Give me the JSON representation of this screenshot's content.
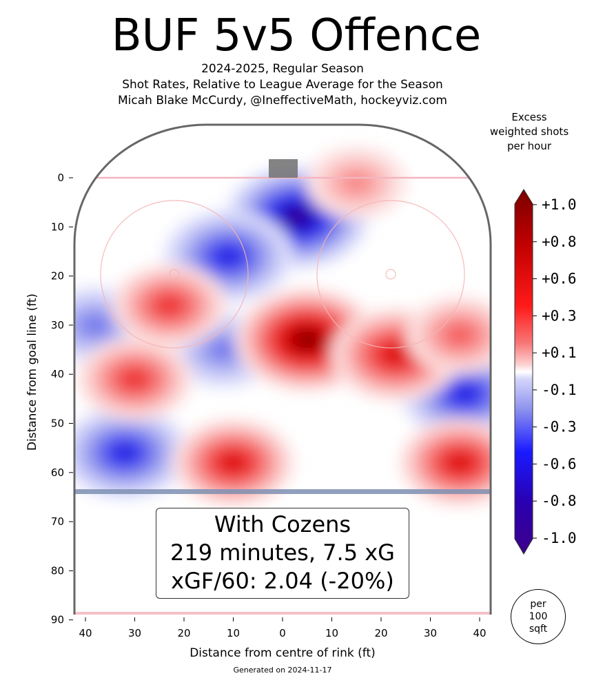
{
  "chart_data": {
    "type": "heatmap",
    "title": "BUF 5v5 Offence",
    "subtitle_lines": [
      "2024-2025, Regular Season",
      "Shot Rates, Relative to League Average for the Season",
      "Micah Blake McCurdy, @IneffectiveMath, hockeyviz.com"
    ],
    "xlabel": "Distance from centre of rink (ft)",
    "ylabel": "Distance from goal line (ft)",
    "x_ticks": [
      40,
      30,
      20,
      10,
      0,
      10,
      20,
      30,
      40
    ],
    "y_ticks": [
      0,
      10,
      20,
      30,
      40,
      50,
      60,
      70,
      80,
      90
    ],
    "xlim": [
      -42,
      42
    ],
    "ylim": [
      -11,
      90
    ],
    "colorbar": {
      "title": "Excess weighted shots per hour",
      "tick_labels": [
        "+1.0",
        "+0.8",
        "+0.6",
        "+0.3",
        "+0.1",
        "-0.1",
        "-0.3",
        "-0.6",
        "-0.8",
        "-1.0"
      ],
      "range": [
        -1.0,
        1.0
      ]
    },
    "hotspots": [
      {
        "x": 5,
        "y": 33,
        "value": 1.0
      },
      {
        "x": 23,
        "y": 36,
        "value": 0.8
      },
      {
        "x": 36,
        "y": 32,
        "value": 0.5
      },
      {
        "x": -23,
        "y": 26,
        "value": 0.6
      },
      {
        "x": -30,
        "y": 41,
        "value": 0.6
      },
      {
        "x": -10,
        "y": 58,
        "value": 0.7
      },
      {
        "x": 36,
        "y": 58,
        "value": 0.7
      },
      {
        "x": 15,
        "y": 1,
        "value": 0.4
      }
    ],
    "coldspots": [
      {
        "x": 3,
        "y": 8,
        "value": -1.0
      },
      {
        "x": -11,
        "y": 16,
        "value": -0.8
      },
      {
        "x": -32,
        "y": 56,
        "value": -0.8
      },
      {
        "x": 37,
        "y": 44,
        "value": -0.8
      },
      {
        "x": -12,
        "y": 35,
        "value": -0.5
      },
      {
        "x": -38,
        "y": 30,
        "value": -0.5
      }
    ],
    "annotation_lines": [
      "With Cozens",
      "219 minutes, 7.5 xG",
      "xGF/60: 2.04 (-20%)"
    ],
    "unit_badge": "per\n100\nsqft",
    "footer": "Generated on 2024-11-17",
    "colors": {
      "max": "#7a0000",
      "high": "#e50000",
      "mid_high": "#f7a1a1",
      "zero": "#ffffff",
      "mid_low": "#b3b6f5",
      "low": "#0000e0",
      "min": "#3d008a",
      "rink_line": "#666666",
      "goal_line": "#f3b5c0",
      "blue_line": "#7c8fb2"
    }
  }
}
